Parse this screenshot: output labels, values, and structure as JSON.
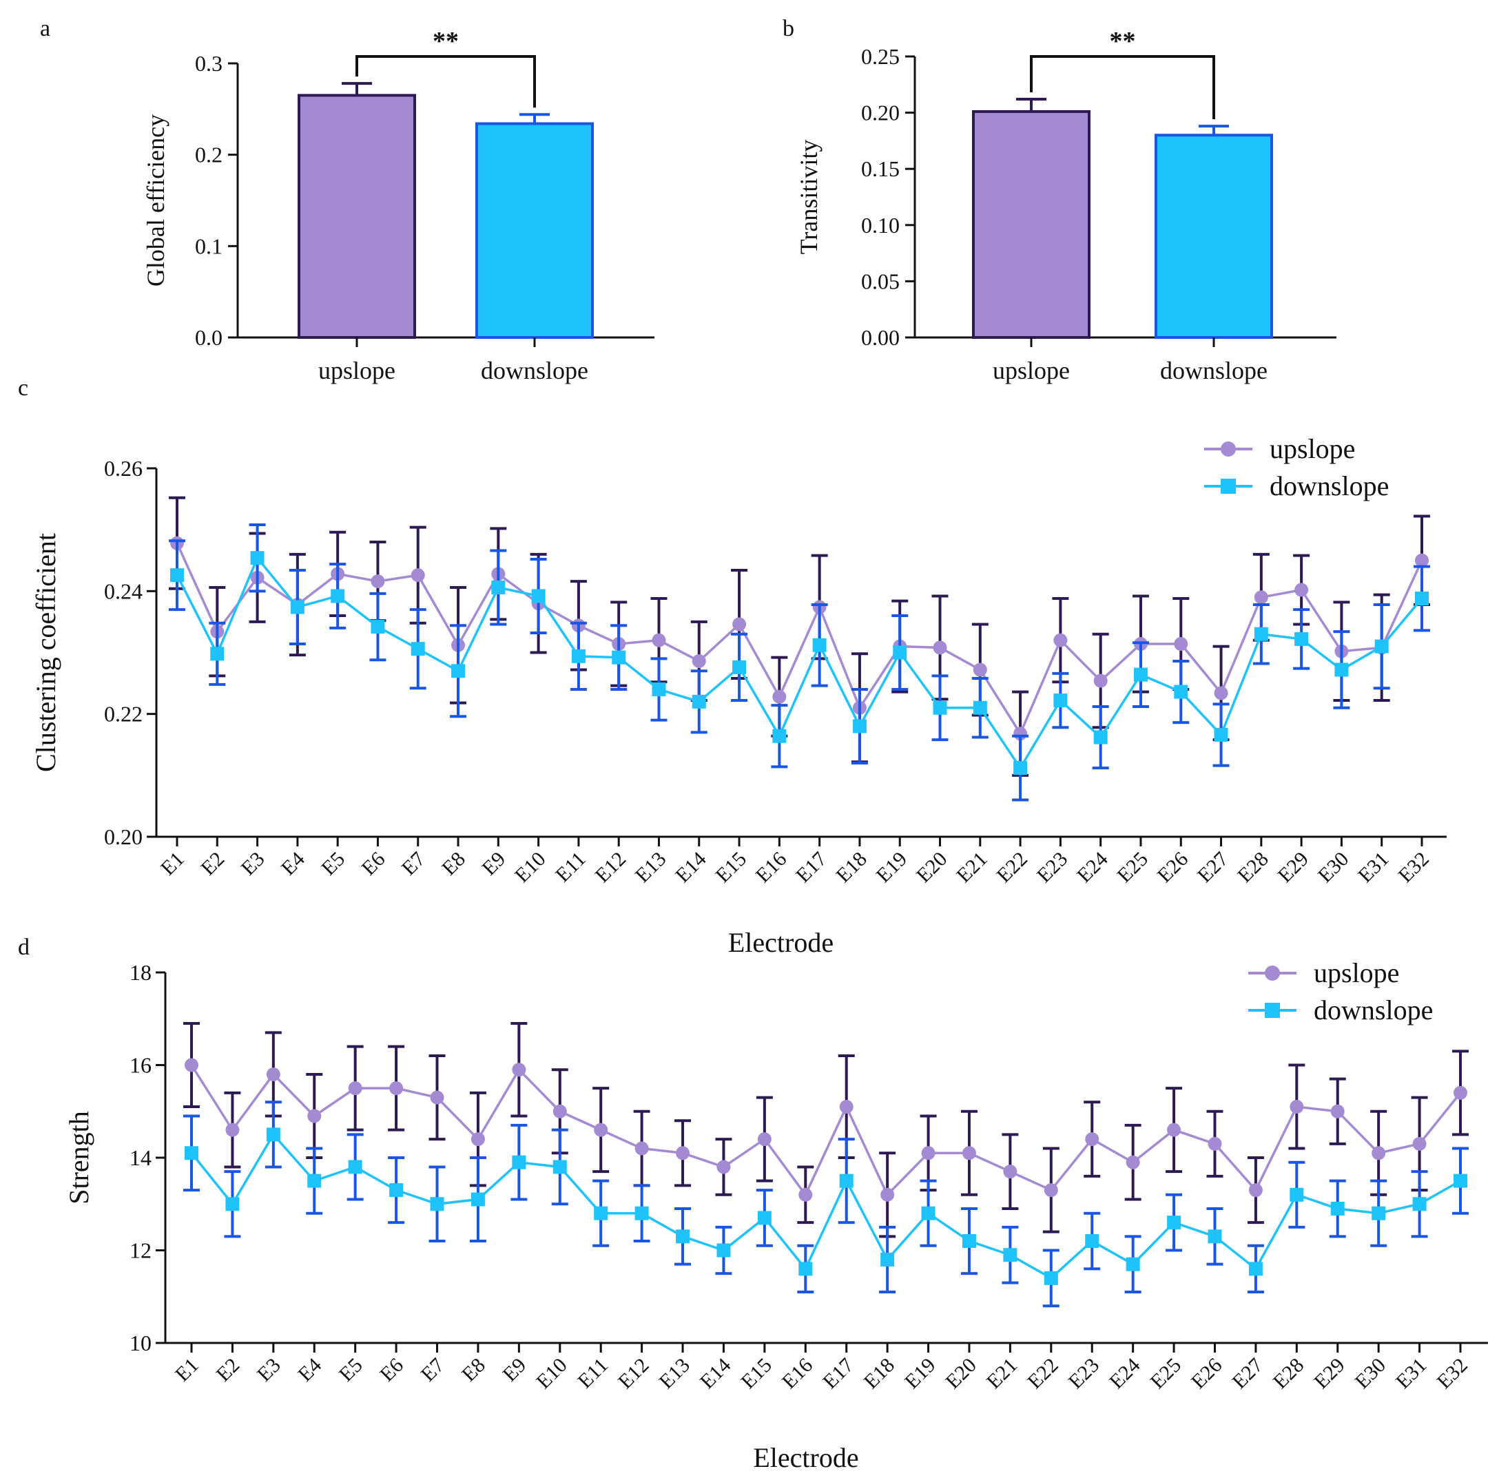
{
  "colors": {
    "upslope_fill": "#A48AD3",
    "upslope_edge": "#2E1A52",
    "downslope_fill": "#1EC3FB",
    "downslope_edge": "#1A56E6",
    "up_line": "#A48AD3",
    "up_err": "#2E1A52",
    "down_line": "#1EC3FB",
    "down_err": "#1A56E6",
    "axis": "#111111"
  },
  "chart_data": [
    {
      "panel": "a",
      "type": "bar",
      "categories": [
        "upslope",
        "downslope"
      ],
      "values": [
        0.265,
        0.234
      ],
      "errors": [
        0.013,
        0.01
      ],
      "ylabel": "Global efficiency",
      "ylim": [
        0,
        0.3
      ],
      "yticks": [
        "0.0",
        "0.1",
        "0.2",
        "0.3"
      ],
      "significance": "**"
    },
    {
      "panel": "b",
      "type": "bar",
      "categories": [
        "upslope",
        "downslope"
      ],
      "values": [
        0.201,
        0.18
      ],
      "errors": [
        0.011,
        0.008
      ],
      "ylabel": "Transitivity",
      "ylim": [
        0,
        0.25
      ],
      "yticks": [
        "0.00",
        "0.05",
        "0.10",
        "0.15",
        "0.20",
        "0.25"
      ],
      "significance": "**"
    },
    {
      "panel": "c",
      "type": "line",
      "ylabel": "Clustering coefficient",
      "xlabel": "Electrode",
      "ylim": [
        0.2,
        0.26
      ],
      "yticks": [
        "0.20",
        "0.22",
        "0.24",
        "0.26"
      ],
      "categories": [
        "E1",
        "E2",
        "E3",
        "E4",
        "E5",
        "E6",
        "E7",
        "E8",
        "E9",
        "E10",
        "E11",
        "E12",
        "E13",
        "E14",
        "E15",
        "E16",
        "E17",
        "E18",
        "E19",
        "E20",
        "E21",
        "E22",
        "E23",
        "E24",
        "E25",
        "E26",
        "E27",
        "E28",
        "E29",
        "E30",
        "E31",
        "E32"
      ],
      "legend": [
        "upslope",
        "downslope"
      ],
      "series": [
        {
          "name": "upslope",
          "values": [
            0.2478,
            0.2334,
            0.2422,
            0.2378,
            0.2428,
            0.2416,
            0.2426,
            0.2312,
            0.2428,
            0.238,
            0.2344,
            0.2314,
            0.232,
            0.2286,
            0.2346,
            0.2228,
            0.2374,
            0.221,
            0.231,
            0.2308,
            0.2272,
            0.2168,
            0.232,
            0.2254,
            0.2314,
            0.2314,
            0.2234,
            0.239,
            0.2402,
            0.2302,
            0.2308,
            0.245
          ],
          "errors": [
            0.0074,
            0.0072,
            0.0072,
            0.0082,
            0.0068,
            0.0064,
            0.0078,
            0.0094,
            0.0074,
            0.008,
            0.0072,
            0.0068,
            0.0068,
            0.0064,
            0.0088,
            0.0064,
            0.0084,
            0.0088,
            0.0074,
            0.0084,
            0.0074,
            0.0068,
            0.0068,
            0.0076,
            0.0078,
            0.0074,
            0.0076,
            0.007,
            0.0056,
            0.008,
            0.0086,
            0.0072
          ]
        },
        {
          "name": "downslope",
          "values": [
            0.2426,
            0.2298,
            0.2454,
            0.2374,
            0.2392,
            0.2342,
            0.2306,
            0.227,
            0.2406,
            0.2392,
            0.2294,
            0.2292,
            0.224,
            0.222,
            0.2276,
            0.2164,
            0.2312,
            0.218,
            0.23,
            0.221,
            0.221,
            0.2112,
            0.2222,
            0.2162,
            0.2264,
            0.2236,
            0.2166,
            0.233,
            0.2322,
            0.2272,
            0.231,
            0.2388
          ],
          "errors": [
            0.0056,
            0.005,
            0.0054,
            0.006,
            0.0052,
            0.0054,
            0.0064,
            0.0074,
            0.006,
            0.006,
            0.0054,
            0.0052,
            0.005,
            0.005,
            0.0054,
            0.005,
            0.0066,
            0.006,
            0.006,
            0.0052,
            0.0048,
            0.0052,
            0.0044,
            0.005,
            0.0052,
            0.005,
            0.005,
            0.0048,
            0.0048,
            0.0062,
            0.0068,
            0.0052
          ]
        }
      ]
    },
    {
      "panel": "d",
      "type": "line",
      "ylabel": "Strength",
      "xlabel": "Electrode",
      "ylim": [
        10,
        18
      ],
      "yticks": [
        "10",
        "12",
        "14",
        "16",
        "18"
      ],
      "categories": [
        "E1",
        "E2",
        "E3",
        "E4",
        "E5",
        "E6",
        "E7",
        "E8",
        "E9",
        "E10",
        "E11",
        "E12",
        "E13",
        "E14",
        "E15",
        "E16",
        "E17",
        "E18",
        "E19",
        "E20",
        "E21",
        "E22",
        "E23",
        "E24",
        "E25",
        "E26",
        "E27",
        "E28",
        "E29",
        "E30",
        "E31",
        "E32"
      ],
      "legend": [
        "upslope",
        "downslope"
      ],
      "series": [
        {
          "name": "upslope",
          "values": [
            16.0,
            14.6,
            15.8,
            14.9,
            15.5,
            15.5,
            15.3,
            14.4,
            15.9,
            15.0,
            14.6,
            14.2,
            14.1,
            13.8,
            14.4,
            13.2,
            15.1,
            13.2,
            14.1,
            14.1,
            13.7,
            13.3,
            14.4,
            13.9,
            14.6,
            14.3,
            13.3,
            15.1,
            15.0,
            14.1,
            14.3,
            15.4
          ],
          "errors": [
            0.9,
            0.8,
            0.9,
            0.9,
            0.9,
            0.9,
            0.9,
            1.0,
            1.0,
            0.9,
            0.9,
            0.8,
            0.7,
            0.6,
            0.9,
            0.6,
            1.1,
            0.9,
            0.8,
            0.9,
            0.8,
            0.9,
            0.8,
            0.8,
            0.9,
            0.7,
            0.7,
            0.9,
            0.7,
            0.9,
            1.0,
            0.9
          ]
        },
        {
          "name": "downslope",
          "values": [
            14.1,
            13.0,
            14.5,
            13.5,
            13.8,
            13.3,
            13.0,
            13.1,
            13.9,
            13.8,
            12.8,
            12.8,
            12.3,
            12.0,
            12.7,
            11.6,
            13.5,
            11.8,
            12.8,
            12.2,
            11.9,
            11.4,
            12.2,
            11.7,
            12.6,
            12.3,
            11.6,
            13.2,
            12.9,
            12.8,
            13.0,
            13.5
          ],
          "errors": [
            0.8,
            0.7,
            0.7,
            0.7,
            0.7,
            0.7,
            0.8,
            0.9,
            0.8,
            0.8,
            0.7,
            0.6,
            0.6,
            0.5,
            0.6,
            0.5,
            0.9,
            0.7,
            0.7,
            0.7,
            0.6,
            0.6,
            0.6,
            0.6,
            0.6,
            0.6,
            0.5,
            0.7,
            0.6,
            0.7,
            0.7,
            0.7
          ]
        }
      ]
    }
  ],
  "panel_labels": [
    "a",
    "b",
    "c",
    "d"
  ]
}
